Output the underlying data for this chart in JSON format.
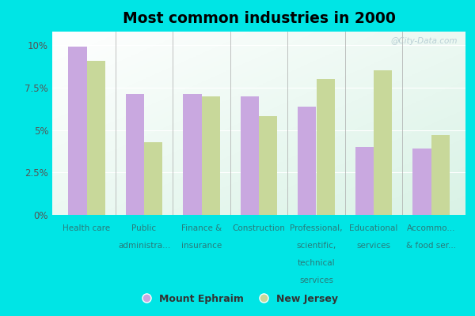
{
  "title": "Most common industries in 2000",
  "categories": [
    "Health care",
    "Public\nadministra...",
    "Finance &\ninsurance",
    "Construction",
    "Professional,\nscientific,\ntechnical\nservices",
    "Educational\nservices",
    "Accommo...\n& food ser..."
  ],
  "mount_ephraim": [
    9.9,
    7.1,
    7.1,
    7.0,
    6.4,
    4.0,
    3.9
  ],
  "new_jersey": [
    9.1,
    4.3,
    7.0,
    5.8,
    8.0,
    8.5,
    4.7
  ],
  "color_mount": "#c9a8e0",
  "color_nj": "#c8d89a",
  "background_outer": "#00e5e5",
  "yticks": [
    0,
    2.5,
    5.0,
    7.5,
    10.0
  ],
  "ytick_labels": [
    "0%",
    "2.5%",
    "5%",
    "7.5%",
    "10%"
  ],
  "ylim": [
    0,
    10.8
  ],
  "legend_mount": "Mount Ephraim",
  "legend_nj": "New Jersey",
  "watermark": "@City-Data.com"
}
